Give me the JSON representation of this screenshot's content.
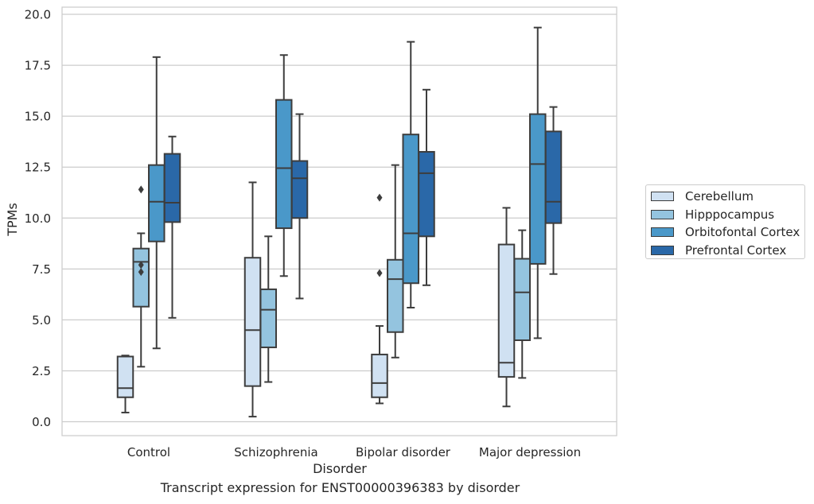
{
  "chart_data": {
    "type": "boxplot",
    "caption": "Transcript expression for ENST00000396383 by disorder",
    "xlabel": "Disorder",
    "ylabel": "TPMs",
    "ylim": [
      -0.7,
      20.4
    ],
    "yticks": [
      "0.0",
      "2.5",
      "5.0",
      "7.5",
      "10.0",
      "12.5",
      "15.0",
      "17.5",
      "20.0"
    ],
    "grid": "horizontal",
    "legend_placement": "right, outside plot",
    "categories": [
      "Control",
      "Schizophrenia",
      "Bipolar disorder",
      "Major depression"
    ],
    "series": [
      {
        "name": "Cerebellum",
        "color": "#d0e1f2",
        "boxes": [
          {
            "whislo": 0.45,
            "q1": 1.2,
            "med": 1.65,
            "q3": 3.2,
            "whishi": 3.25,
            "fliers": []
          },
          {
            "whislo": 0.25,
            "q1": 1.75,
            "med": 4.5,
            "q3": 8.05,
            "whishi": 11.75,
            "fliers": []
          },
          {
            "whislo": 0.9,
            "q1": 1.2,
            "med": 1.9,
            "q3": 3.3,
            "whishi": 4.7,
            "fliers": [
              7.3,
              11.0
            ]
          },
          {
            "whislo": 0.75,
            "q1": 2.2,
            "med": 2.9,
            "q3": 8.7,
            "whishi": 10.5,
            "fliers": []
          }
        ]
      },
      {
        "name": "Hipppocampus",
        "color": "#94c4df",
        "boxes": [
          {
            "whislo": 2.7,
            "q1": 5.65,
            "med": 7.85,
            "q3": 8.5,
            "whishi": 9.25,
            "fliers": [
              7.35,
              7.7,
              11.4
            ]
          },
          {
            "whislo": 1.95,
            "q1": 3.65,
            "med": 5.5,
            "q3": 6.5,
            "whishi": 9.1,
            "fliers": []
          },
          {
            "whislo": 3.15,
            "q1": 4.4,
            "med": 7.0,
            "q3": 7.95,
            "whishi": 12.6,
            "fliers": []
          },
          {
            "whislo": 2.15,
            "q1": 4.0,
            "med": 6.35,
            "q3": 8.0,
            "whishi": 9.4,
            "fliers": []
          }
        ]
      },
      {
        "name": "Orbitofontal Cortex",
        "color": "#4a98c9",
        "boxes": [
          {
            "whislo": 3.6,
            "q1": 8.85,
            "med": 10.8,
            "q3": 12.6,
            "whishi": 17.9,
            "fliers": []
          },
          {
            "whislo": 7.15,
            "q1": 9.5,
            "med": 12.45,
            "q3": 15.8,
            "whishi": 18.0,
            "fliers": []
          },
          {
            "whislo": 5.6,
            "q1": 6.8,
            "med": 9.25,
            "q3": 14.1,
            "whishi": 18.65,
            "fliers": []
          },
          {
            "whislo": 4.1,
            "q1": 7.75,
            "med": 12.65,
            "q3": 15.1,
            "whishi": 19.35,
            "fliers": []
          }
        ]
      },
      {
        "name": "Prefrontal Cortex",
        "color": "#2a68a8",
        "boxes": [
          {
            "whislo": 5.1,
            "q1": 9.8,
            "med": 10.75,
            "q3": 13.15,
            "whishi": 14.0,
            "fliers": []
          },
          {
            "whislo": 6.05,
            "q1": 10.0,
            "med": 11.95,
            "q3": 12.8,
            "whishi": 15.1,
            "fliers": []
          },
          {
            "whislo": 6.7,
            "q1": 9.1,
            "med": 12.2,
            "q3": 13.25,
            "whishi": 16.3,
            "fliers": []
          },
          {
            "whislo": 7.25,
            "q1": 9.75,
            "med": 10.8,
            "q3": 14.25,
            "whishi": 15.45,
            "fliers": []
          }
        ]
      }
    ]
  }
}
